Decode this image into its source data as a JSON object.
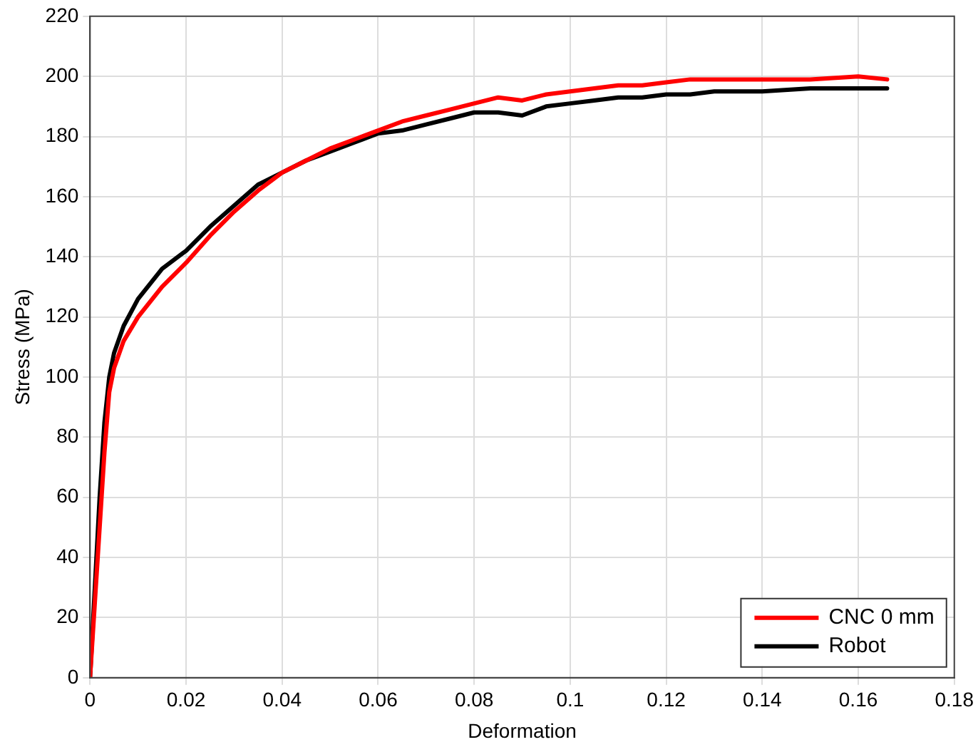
{
  "chart_data": {
    "type": "line",
    "xlabel": "Deformation",
    "ylabel": "Stress (MPa)",
    "xlim": [
      0,
      0.18
    ],
    "xticks": [
      0,
      0.02,
      0.04,
      0.06,
      0.08,
      0.1,
      0.12,
      0.14,
      0.16,
      0.18
    ],
    "ylim": [
      0,
      220
    ],
    "yticks": [
      0,
      20,
      40,
      60,
      80,
      100,
      120,
      140,
      160,
      180,
      200,
      220
    ],
    "grid": true,
    "legend": "bottom right",
    "marker": "none",
    "line_style": "solid",
    "x": [
      0,
      0.001,
      0.002,
      0.003,
      0.004,
      0.005,
      0.007,
      0.01,
      0.015,
      0.02,
      0.025,
      0.03,
      0.035,
      0.04,
      0.045,
      0.05,
      0.055,
      0.06,
      0.065,
      0.07,
      0.075,
      0.08,
      0.085,
      0.09,
      0.095,
      0.1,
      0.105,
      0.11,
      0.115,
      0.12,
      0.125,
      0.13,
      0.14,
      0.15,
      0.16,
      0.166
    ],
    "series": [
      {
        "name": "CNC 0 mm",
        "color": "#ff0000",
        "values": [
          0,
          25,
          50,
          75,
          95,
          103,
          112,
          120,
          130,
          138,
          147,
          155,
          162,
          168,
          172,
          176,
          179,
          182,
          185,
          187,
          189,
          191,
          193,
          192,
          194,
          195,
          196,
          197,
          197,
          198,
          199,
          199,
          199,
          199,
          200,
          199
        ]
      },
      {
        "name": "Robot",
        "color": "#000000",
        "values": [
          0,
          30,
          60,
          85,
          100,
          108,
          117,
          126,
          136,
          142,
          150,
          157,
          164,
          168,
          172,
          175,
          178,
          181,
          182,
          184,
          186,
          188,
          188,
          187,
          190,
          191,
          192,
          193,
          193,
          194,
          194,
          195,
          195,
          196,
          196,
          196
        ]
      }
    ]
  }
}
